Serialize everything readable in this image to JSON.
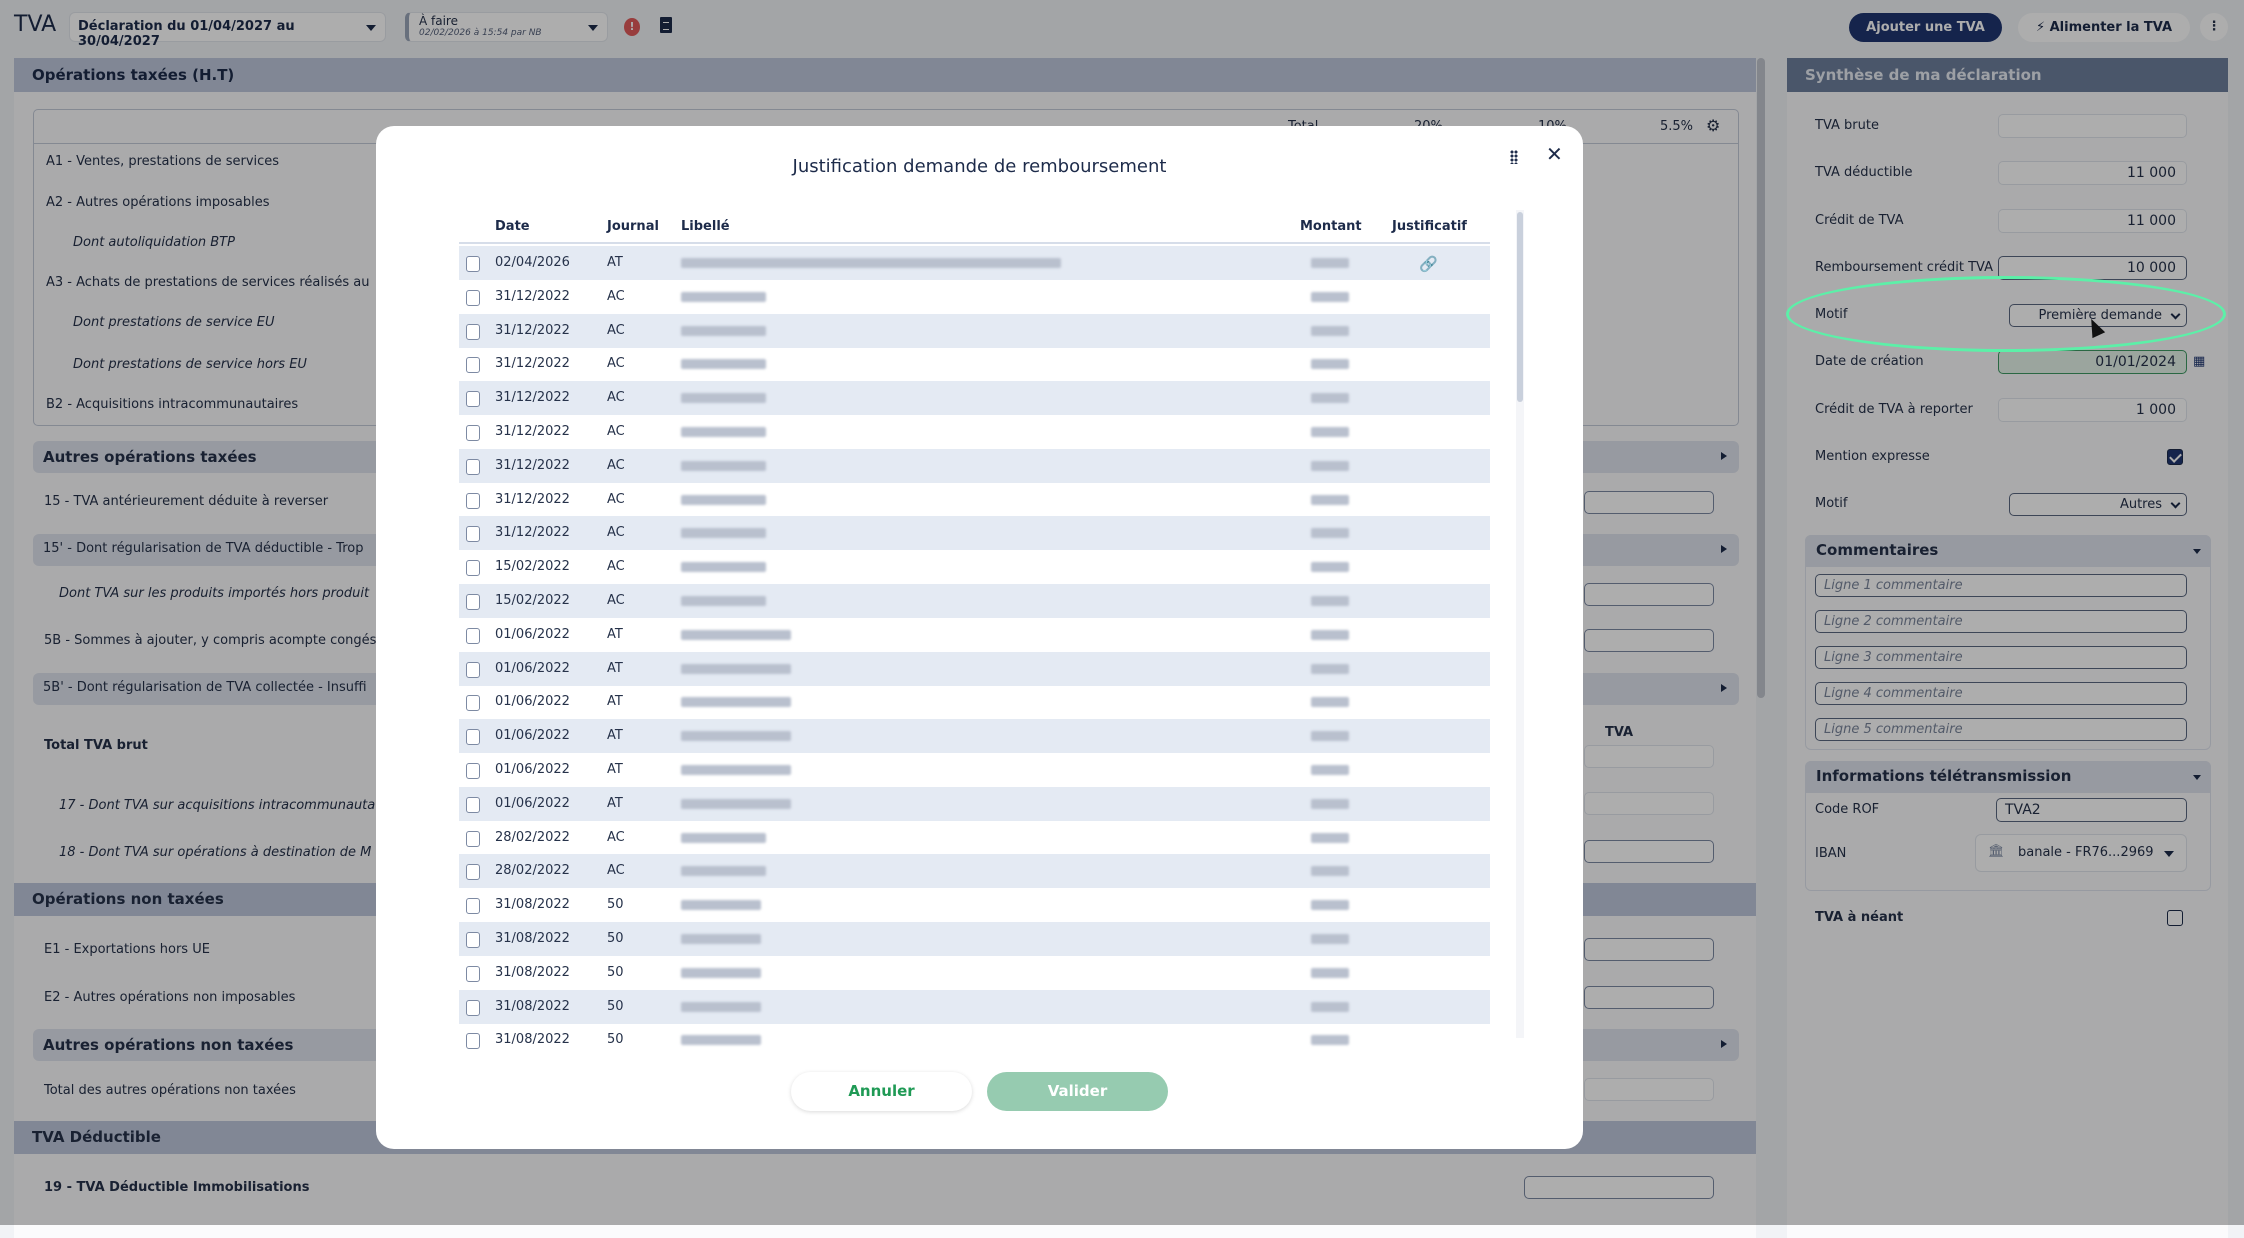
{
  "topbar": {
    "title": "TVA",
    "declaration": "Déclaration du 01/04/2027 au 30/04/2027",
    "status": "À faire",
    "status_detail": "02/02/2026 à 15:54 par NB",
    "add_button": "Ajouter une TVA",
    "feed_button": "Alimenter la TVA"
  },
  "left": {
    "title": "Opérations taxées (H.T)",
    "columns": [
      "Total",
      "20%",
      "10%",
      "5.5%"
    ],
    "rows": [
      "A1 - Ventes, prestations de services",
      "A2 - Autres opérations imposables",
      "Dont autoliquidation BTP",
      "A3 - Achats de prestations de services réalisés au",
      "Dont prestations de service EU",
      "Dont prestations de service hors EU",
      "B2 - Acquisitions intracommunautaires"
    ],
    "autres_taxees": "Autres opérations taxées",
    "r15": "15 - TVA antérieurement déduite à reverser",
    "r15p": "15' - Dont régularisation de TVA déductible - Trop",
    "r_import": "Dont TVA sur les produits importés hors produit",
    "r5b": "5B - Sommes à ajouter, y compris acompte congés",
    "r5bp": "5B' - Dont régularisation de TVA collectée - Insuffi",
    "total_brut": "Total TVA brut",
    "tva_col": "TVA",
    "r17": "17 - Dont TVA sur acquisitions intracommunauta",
    "r18": "18 - Dont TVA sur opérations à destination de M",
    "non_taxees": "Opérations non taxées",
    "e1": "E1 - Exportations hors UE",
    "e2": "E2 - Autres opérations non imposables",
    "autres_non_taxees": "Autres opérations non taxées",
    "total_autres": "Total des autres opérations non taxées",
    "deductible": "TVA Déductible",
    "r19": "19 - TVA Déductible Immobilisations"
  },
  "right": {
    "title": "Synthèse de ma déclaration",
    "tva_brute": {
      "label": "TVA brute",
      "value": ""
    },
    "tva_deductible": {
      "label": "TVA déductible",
      "value": "11 000"
    },
    "credit": {
      "label": "Crédit de TVA",
      "value": "11 000"
    },
    "remboursement": {
      "label": "Remboursement crédit TVA",
      "value": "10 000"
    },
    "motif1": {
      "label": "Motif",
      "value": "Première demande"
    },
    "date_creation": {
      "label": "Date de création",
      "value": "01/01/2024"
    },
    "credit_reporter": {
      "label": "Crédit de TVA à reporter",
      "value": "1 000"
    },
    "mention": {
      "label": "Mention expresse",
      "checked": true
    },
    "motif2": {
      "label": "Motif",
      "value": "Autres"
    },
    "comments": {
      "title": "Commentaires",
      "placeholders": [
        "Ligne 1 commentaire",
        "Ligne 2 commentaire",
        "Ligne 3 commentaire",
        "Ligne 4 commentaire",
        "Ligne 5 commentaire"
      ]
    },
    "teletrans": {
      "title": "Informations télétransmission",
      "rof_label": "Code ROF",
      "rof_value": "TVA2",
      "iban_label": "IBAN",
      "iban_value": "banale - FR76...2969"
    },
    "neant": {
      "label": "TVA à néant",
      "checked": false
    }
  },
  "modal": {
    "title": "Justification demande de remboursement",
    "headers": {
      "date": "Date",
      "journal": "Journal",
      "libelle": "Libellé",
      "montant": "Montant",
      "justificatif": "Justificatif"
    },
    "rows": [
      {
        "date": "02/04/2026",
        "journal": "AT",
        "link": true
      },
      {
        "date": "31/12/2022",
        "journal": "AC"
      },
      {
        "date": "31/12/2022",
        "journal": "AC"
      },
      {
        "date": "31/12/2022",
        "journal": "AC"
      },
      {
        "date": "31/12/2022",
        "journal": "AC"
      },
      {
        "date": "31/12/2022",
        "journal": "AC"
      },
      {
        "date": "31/12/2022",
        "journal": "AC"
      },
      {
        "date": "31/12/2022",
        "journal": "AC"
      },
      {
        "date": "31/12/2022",
        "journal": "AC"
      },
      {
        "date": "15/02/2022",
        "journal": "AC"
      },
      {
        "date": "15/02/2022",
        "journal": "AC"
      },
      {
        "date": "01/06/2022",
        "journal": "AT"
      },
      {
        "date": "01/06/2022",
        "journal": "AT"
      },
      {
        "date": "01/06/2022",
        "journal": "AT"
      },
      {
        "date": "01/06/2022",
        "journal": "AT"
      },
      {
        "date": "01/06/2022",
        "journal": "AT"
      },
      {
        "date": "01/06/2022",
        "journal": "AT"
      },
      {
        "date": "28/02/2022",
        "journal": "AC"
      },
      {
        "date": "28/02/2022",
        "journal": "AC"
      },
      {
        "date": "31/08/2022",
        "journal": "50"
      },
      {
        "date": "31/08/2022",
        "journal": "50"
      },
      {
        "date": "31/08/2022",
        "journal": "50"
      },
      {
        "date": "31/08/2022",
        "journal": "50"
      },
      {
        "date": "31/08/2022",
        "journal": "50"
      }
    ],
    "cancel": "Annuler",
    "validate": "Valider"
  },
  "colors": {
    "accent": "#1f3670",
    "highlight": "#5cf0a8",
    "validate": "#96cbb0",
    "cancel_text": "#1f9a55"
  }
}
